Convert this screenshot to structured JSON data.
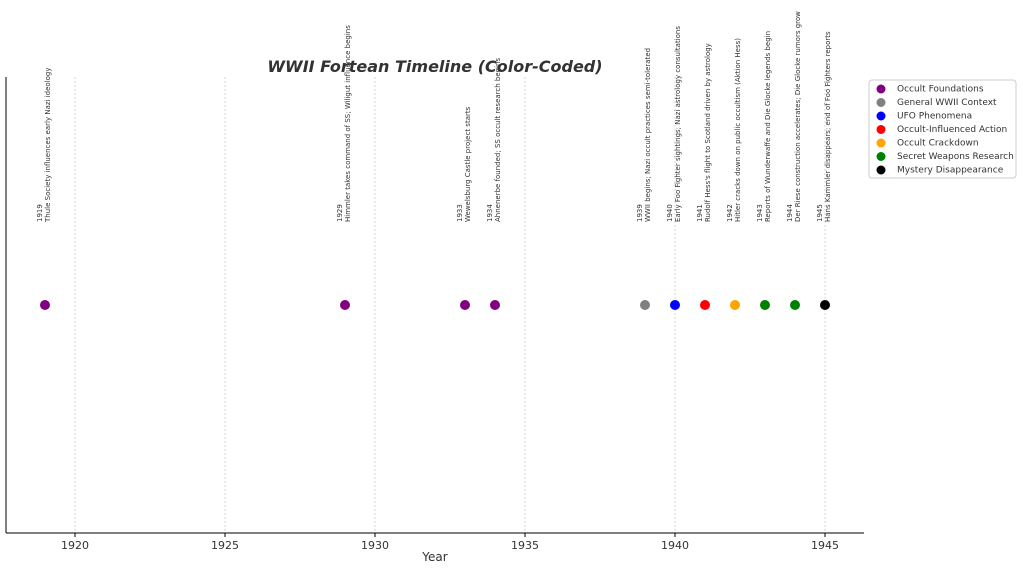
{
  "chart_data": {
    "type": "scatter",
    "title": "WWII Fortean Timeline (Color-Coded)",
    "xlabel": "Year",
    "xlim": [
      1917.7,
      1946.3
    ],
    "xticks": [
      1920,
      1925,
      1930,
      1935,
      1940,
      1945
    ],
    "grid": true,
    "legend": "upper right outside",
    "series": [
      {
        "name": "Occult Foundations",
        "color": "#800080",
        "x": [
          1919,
          1929,
          1933,
          1934
        ],
        "labels": [
          "Thule Society influences early Nazi ideology",
          "Himmler takes command of SS; Wiligut influence begins",
          "Wewelsburg Castle project starts",
          "Ahnenerbe founded; SS occult research begins"
        ]
      },
      {
        "name": "General WWII Context",
        "color": "#808080",
        "x": [
          1939
        ],
        "labels": [
          "WWII begins; Nazi occult practices semi-tolerated"
        ]
      },
      {
        "name": "UFO Phenomena",
        "color": "#0000ff",
        "x": [
          1940
        ],
        "labels": [
          "Early Foo Fighter sightings; Nazi astrology consultations"
        ]
      },
      {
        "name": "Occult-Influenced Action",
        "color": "#ff0000",
        "x": [
          1941
        ],
        "labels": [
          "Rudolf Hess's flight to Scotland driven by astrology"
        ]
      },
      {
        "name": "Occult Crackdown",
        "color": "#ffa500",
        "x": [
          1942
        ],
        "labels": [
          "Hitler cracks down on public occultism (Aktion Hess)"
        ]
      },
      {
        "name": "Secret Weapons Research",
        "color": "#008000",
        "x": [
          1943,
          1944
        ],
        "labels": [
          "Reports of Wunderwaffe and Die Glocke legends begin",
          "Der Riese construction accelerates; Die Glocke rumors grow"
        ]
      },
      {
        "name": "Mystery Disappearance",
        "color": "#000000",
        "x": [
          1945
        ],
        "labels": [
          "Hans Kammler disappears; end of Foo Fighters reports"
        ]
      }
    ]
  }
}
